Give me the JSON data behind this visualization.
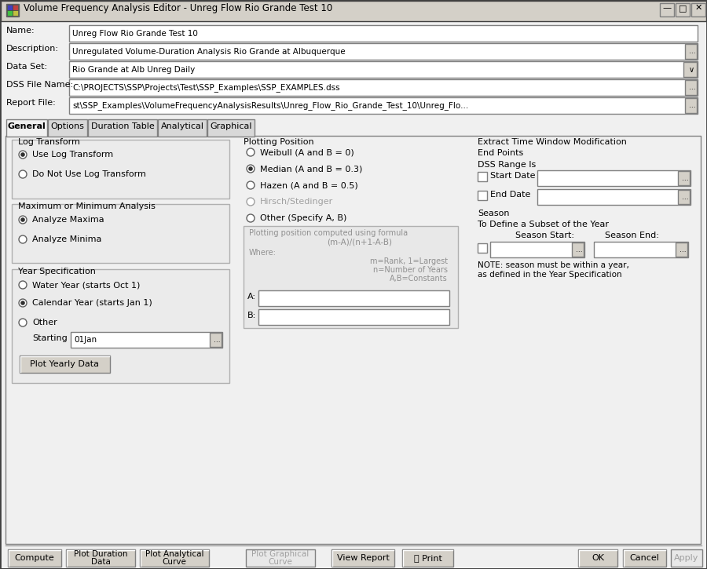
{
  "title": "Volume Frequency Analysis Editor - Unreg Flow Rio Grande Test 10",
  "bg_outer": "#d4d0c8",
  "bg_window": "#f0f0f0",
  "bg_titlebar": "#f0f0f0",
  "bg_field": "#ffffff",
  "bg_group": "#ebebeb",
  "bg_button": "#d4d0c8",
  "bg_tab_active": "#f0f0f0",
  "bg_tab_inactive": "#d8d8d8",
  "bg_content": "#f0f0f0",
  "color_border": "#808080",
  "color_text": "#000000",
  "color_gray_text": "#909090",
  "color_disabled": "#a0a0a0",
  "name_value": "Unreg Flow Rio Grande Test 10",
  "description_value": "Unregulated Volume-Duration Analysis Rio Grande at Albuquerque",
  "dataset_value": "Rio Grande at Alb Unreg Daily",
  "dss_file_value": "C:\\PROJECTS\\SSP\\Projects\\Test\\SSP_Examples\\SSP_EXAMPLES.dss",
  "report_file_value": "st\\SSP_Examples\\VolumeFrequencyAnalysisResults\\Unreg_Flow_Rio_Grande_Test_10\\Unreg_Flo...",
  "tabs": [
    "General",
    "Options",
    "Duration Table",
    "Analytical",
    "Graphical"
  ],
  "active_tab": "General"
}
